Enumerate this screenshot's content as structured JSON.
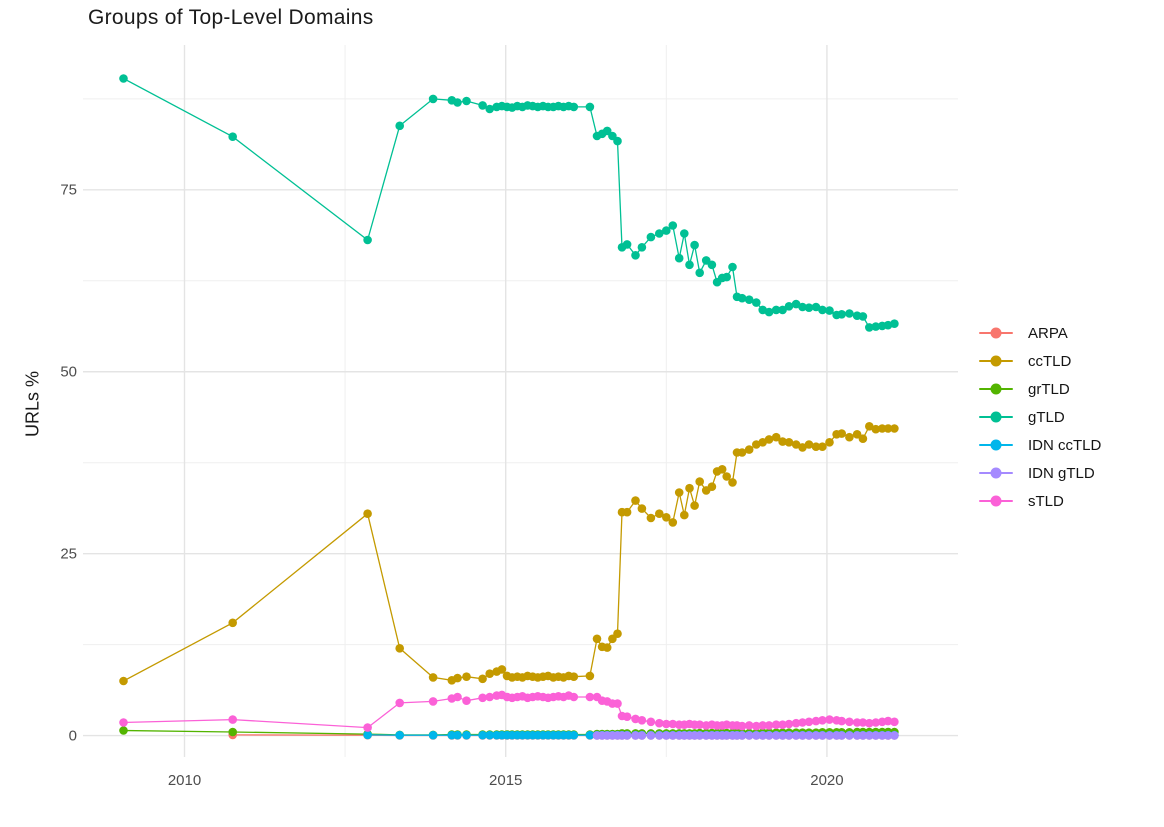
{
  "chart": {
    "background": "#ffffff",
    "grid_major_color": "#e4e4e4",
    "grid_minor_color": "#efefef",
    "tick_label_color": "#4d4d4d",
    "title_color": "#1b1b1b"
  },
  "chart_data": {
    "type": "line",
    "title": "Groups of Top-Level Domains",
    "xlabel": "",
    "ylabel": "URLs %",
    "legend_position": "right",
    "grid": true,
    "xlim": [
      2008.42,
      2022.04
    ],
    "ylim": [
      -2.94,
      94.9
    ],
    "x_ticks": [
      2010,
      2015,
      2020
    ],
    "x_tick_labels": [
      "2010",
      "2015",
      "2020"
    ],
    "x_minor_ticks": [
      2012.5,
      2017.5
    ],
    "y_ticks": [
      0,
      25,
      50,
      75
    ],
    "y_tick_labels": [
      "0",
      "25",
      "50",
      "75"
    ],
    "y_minor_ticks": [
      12.5,
      37.5,
      62.5,
      87.5
    ],
    "x": [
      2009.05,
      2010.75,
      2012.85,
      2013.35,
      2013.87,
      2014.16,
      2014.25,
      2014.39,
      2014.64,
      2014.75,
      2014.86,
      2014.94,
      2015.02,
      2015.1,
      2015.18,
      2015.26,
      2015.34,
      2015.42,
      2015.5,
      2015.58,
      2015.66,
      2015.74,
      2015.82,
      2015.9,
      2015.98,
      2016.06,
      2016.31,
      2016.42,
      2016.5,
      2016.58,
      2016.66,
      2016.74,
      2016.81,
      2016.89,
      2017.02,
      2017.12,
      2017.26,
      2017.39,
      2017.5,
      2017.6,
      2017.7,
      2017.78,
      2017.86,
      2017.94,
      2018.02,
      2018.12,
      2018.21,
      2018.29,
      2018.37,
      2018.44,
      2018.53,
      2018.6,
      2018.68,
      2018.79,
      2018.9,
      2019.0,
      2019.1,
      2019.21,
      2019.31,
      2019.41,
      2019.52,
      2019.62,
      2019.72,
      2019.83,
      2019.93,
      2020.04,
      2020.15,
      2020.23,
      2020.35,
      2020.47,
      2020.56,
      2020.66,
      2020.76,
      2020.86,
      2020.95,
      2021.05
    ],
    "series": [
      {
        "name": "ARPA",
        "color": "#F8766D",
        "values": [
          null,
          0.1,
          0.05,
          0.02,
          0.02,
          0.02,
          0.02,
          0.02,
          0.02,
          0.02,
          0.02,
          0.02,
          0.02,
          0.02,
          0.02,
          0.02,
          0.02,
          0.02,
          0.02,
          0.02,
          0.02,
          0.02,
          0.02,
          0.02,
          0.02,
          0.02,
          0.02,
          0.02,
          0.02,
          0.02,
          0.02,
          0.02,
          0.02,
          0.02,
          0.02,
          0.02,
          0.02,
          0.02,
          0.02,
          0.02,
          0.02,
          0.02,
          0.02,
          0.02,
          0.02,
          0.02,
          0.02,
          0.02,
          0.02,
          0.02,
          0.02,
          0.02,
          0.02,
          0.02,
          0.02,
          0.02,
          0.02,
          0.02,
          0.02,
          0.02,
          0.02,
          0.02,
          0.02,
          0.02,
          0.02,
          0.02,
          0.02,
          0.02,
          0.02,
          0.02,
          0.02,
          0.02,
          0.02,
          0.02,
          0.02,
          0.02
        ]
      },
      {
        "name": "ccTLD",
        "color": "#C49A00",
        "values": [
          7.5,
          15.5,
          30.5,
          12.0,
          8.0,
          7.6,
          7.9,
          8.1,
          7.8,
          8.5,
          8.8,
          9.1,
          8.2,
          8.0,
          8.1,
          8.0,
          8.2,
          8.1,
          8.0,
          8.1,
          8.2,
          8.0,
          8.1,
          8.0,
          8.2,
          8.1,
          8.2,
          13.3,
          12.2,
          12.1,
          13.3,
          14.0,
          30.7,
          30.7,
          32.3,
          31.2,
          29.9,
          30.5,
          30.0,
          29.3,
          33.4,
          30.3,
          34.0,
          31.6,
          34.9,
          33.7,
          34.2,
          36.3,
          36.6,
          35.6,
          34.8,
          38.9,
          38.9,
          39.3,
          40.0,
          40.3,
          40.7,
          41.0,
          40.4,
          40.3,
          40.0,
          39.6,
          40.0,
          39.7,
          39.7,
          40.3,
          41.4,
          41.5,
          41.0,
          41.4,
          40.8,
          42.5,
          42.1,
          42.2,
          42.2,
          42.2
        ]
      },
      {
        "name": "grTLD",
        "color": "#53B400",
        "values": [
          0.7,
          0.5,
          0.2,
          0.1,
          0.1,
          0.15,
          0.15,
          0.15,
          0.15,
          0.15,
          0.15,
          0.15,
          0.15,
          0.15,
          0.15,
          0.15,
          0.15,
          0.15,
          0.15,
          0.15,
          0.15,
          0.15,
          0.15,
          0.15,
          0.15,
          0.15,
          0.15,
          0.2,
          0.2,
          0.2,
          0.2,
          0.2,
          0.3,
          0.3,
          0.3,
          0.3,
          0.3,
          0.3,
          0.3,
          0.3,
          0.3,
          0.3,
          0.3,
          0.3,
          0.35,
          0.35,
          0.35,
          0.35,
          0.35,
          0.35,
          0.35,
          0.35,
          0.35,
          0.35,
          0.35,
          0.4,
          0.4,
          0.4,
          0.4,
          0.4,
          0.4,
          0.4,
          0.4,
          0.4,
          0.45,
          0.45,
          0.45,
          0.45,
          0.45,
          0.5,
          0.5,
          0.5,
          0.5,
          0.5,
          0.5,
          0.5
        ]
      },
      {
        "name": "gTLD",
        "color": "#00C094",
        "values": [
          90.3,
          82.3,
          68.1,
          83.8,
          87.5,
          87.3,
          87.0,
          87.2,
          86.6,
          86.1,
          86.4,
          86.5,
          86.4,
          86.3,
          86.5,
          86.4,
          86.6,
          86.5,
          86.4,
          86.5,
          86.4,
          86.4,
          86.5,
          86.4,
          86.5,
          86.4,
          86.4,
          82.4,
          82.7,
          83.1,
          82.4,
          81.7,
          67.1,
          67.5,
          66.0,
          67.1,
          68.5,
          69.0,
          69.4,
          70.1,
          65.6,
          69.0,
          64.7,
          67.4,
          63.6,
          65.3,
          64.7,
          62.3,
          62.9,
          63.0,
          64.4,
          60.3,
          60.1,
          59.9,
          59.5,
          58.5,
          58.2,
          58.5,
          58.5,
          59.0,
          59.3,
          58.9,
          58.8,
          58.9,
          58.5,
          58.4,
          57.8,
          57.9,
          58.0,
          57.7,
          57.6,
          56.1,
          56.2,
          56.3,
          56.4,
          56.6
        ]
      },
      {
        "name": "IDN ccTLD",
        "color": "#00B6EB",
        "values": [
          null,
          null,
          0.1,
          0.05,
          0.05,
          0.05,
          0.05,
          0.05,
          0.05,
          0.05,
          0.05,
          0.05,
          0.05,
          0.05,
          0.05,
          0.05,
          0.05,
          0.05,
          0.05,
          0.05,
          0.05,
          0.05,
          0.05,
          0.05,
          0.05,
          0.05,
          0.05,
          0.05,
          0.05,
          0.05,
          0.05,
          0.05,
          0.05,
          0.05,
          0.05,
          0.05,
          0.05,
          0.05,
          0.05,
          0.05,
          0.05,
          0.05,
          0.05,
          0.05,
          0.05,
          0.05,
          0.05,
          0.05,
          0.05,
          0.05,
          0.05,
          0.05,
          0.05,
          0.05,
          0.05,
          0.05,
          0.05,
          0.05,
          0.05,
          0.05,
          0.05,
          0.05,
          0.05,
          0.05,
          0.05,
          0.05,
          0.05,
          0.05,
          0.05,
          0.05,
          0.05,
          0.05,
          0.05,
          0.05,
          0.05,
          0.05
        ]
      },
      {
        "name": "IDN gTLD",
        "color": "#A58AFF",
        "values": [
          null,
          null,
          null,
          null,
          null,
          null,
          null,
          null,
          null,
          null,
          null,
          null,
          null,
          null,
          null,
          null,
          null,
          null,
          null,
          null,
          null,
          null,
          null,
          null,
          null,
          null,
          null,
          0.03,
          0.03,
          0.03,
          0.03,
          0.03,
          0.03,
          0.03,
          0.03,
          0.03,
          0.03,
          0.03,
          0.03,
          0.03,
          0.03,
          0.03,
          0.03,
          0.03,
          0.03,
          0.03,
          0.03,
          0.03,
          0.03,
          0.03,
          0.03,
          0.03,
          0.03,
          0.03,
          0.03,
          0.03,
          0.03,
          0.03,
          0.03,
          0.03,
          0.03,
          0.03,
          0.03,
          0.03,
          0.03,
          0.03,
          0.03,
          0.03,
          0.03,
          0.03,
          0.03,
          0.03,
          0.03,
          0.03,
          0.03,
          0.03
        ]
      },
      {
        "name": "sTLD",
        "color": "#FB61D7",
        "values": [
          1.8,
          2.2,
          1.1,
          4.5,
          4.7,
          5.1,
          5.3,
          4.8,
          5.2,
          5.3,
          5.5,
          5.6,
          5.3,
          5.2,
          5.3,
          5.4,
          5.2,
          5.3,
          5.4,
          5.3,
          5.2,
          5.3,
          5.4,
          5.3,
          5.5,
          5.3,
          5.3,
          5.3,
          4.8,
          4.7,
          4.4,
          4.4,
          2.7,
          2.6,
          2.3,
          2.1,
          1.9,
          1.7,
          1.6,
          1.6,
          1.5,
          1.5,
          1.6,
          1.5,
          1.5,
          1.4,
          1.5,
          1.4,
          1.4,
          1.5,
          1.4,
          1.4,
          1.3,
          1.4,
          1.3,
          1.4,
          1.4,
          1.5,
          1.5,
          1.6,
          1.7,
          1.8,
          1.9,
          2.0,
          2.1,
          2.2,
          2.1,
          2.0,
          1.9,
          1.8,
          1.8,
          1.7,
          1.8,
          1.9,
          2.0,
          1.9
        ]
      }
    ]
  }
}
